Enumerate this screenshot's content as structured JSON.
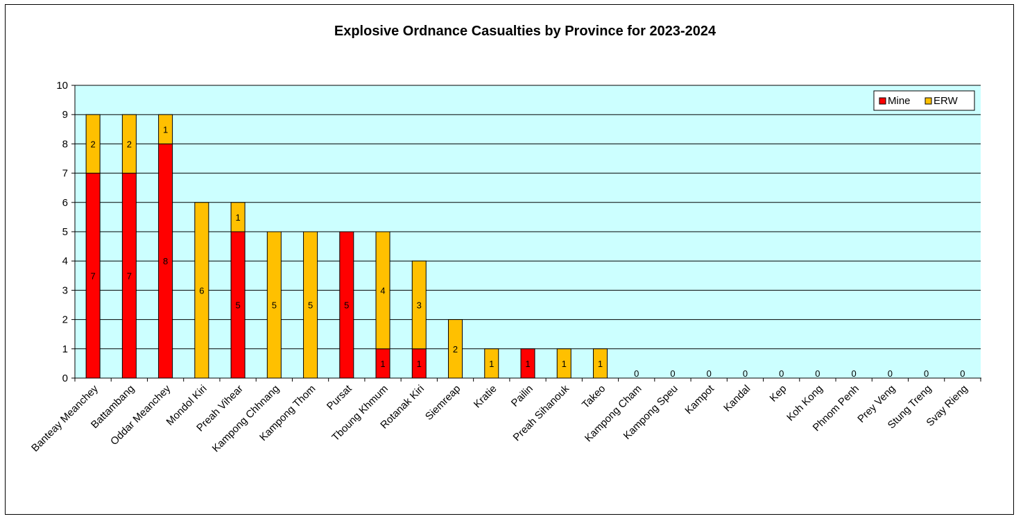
{
  "chart_data": {
    "type": "bar",
    "stacked": true,
    "title": "Explosive Ordnance Casualties by Province for 2023-2024",
    "xlabel": "",
    "ylabel": "",
    "ylim": [
      0,
      10
    ],
    "yticks": [
      "0",
      "1",
      "2",
      "3",
      "4",
      "5",
      "6",
      "7",
      "8",
      "9",
      "10"
    ],
    "grid": true,
    "legend_position": "top-right",
    "categories": [
      "Banteay Meanchey",
      "Battambang",
      "Oddar Meanchey",
      "Mondol Kiri",
      "Preah Vihear",
      "Kampong Chhnang",
      "Kampong Thom",
      "Pursat",
      "Tboung Khmum",
      "Rotanak Kiri",
      "Siemreap",
      "Kratie",
      "Pailin",
      "Preah Sihanouk",
      "Takeo",
      "Kampong Cham",
      "Kampong Speu",
      "Kampot",
      "Kandal",
      "Kep",
      "Koh Kong",
      "Phnom Penh",
      "Prey Veng",
      "Stung Treng",
      "Svay Rieng"
    ],
    "series": [
      {
        "name": "Mine",
        "color": "#ff0000",
        "values": [
          7,
          7,
          8,
          0,
          5,
          0,
          0,
          5,
          1,
          1,
          0,
          0,
          1,
          0,
          0,
          0,
          0,
          0,
          0,
          0,
          0,
          0,
          0,
          0,
          0
        ]
      },
      {
        "name": "ERW",
        "color": "#ffc000",
        "values": [
          2,
          2,
          1,
          6,
          1,
          5,
          5,
          0,
          4,
          3,
          2,
          1,
          0,
          1,
          1,
          0,
          0,
          0,
          0,
          0,
          0,
          0,
          0,
          0,
          0
        ]
      }
    ],
    "zero_labels": [
      "0",
      "0",
      "0",
      "0",
      "0",
      "0",
      "0",
      "0",
      "0",
      "0"
    ]
  },
  "colors": {
    "plot_background": "#ccffff",
    "gridline": "#000000"
  }
}
